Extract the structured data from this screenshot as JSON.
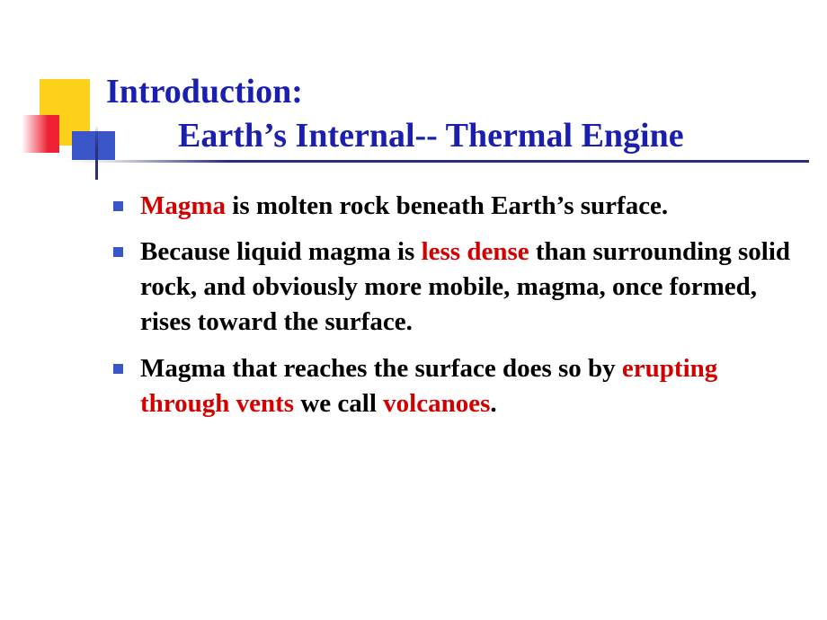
{
  "colors": {
    "title": "#1a1faf",
    "highlight": "#d40000",
    "body_text": "#000000",
    "bullet_square": "#3a55c8",
    "deco_yellow": "#fbcf1a",
    "deco_red": "#ee2233",
    "deco_blue": "#3a55c8",
    "rule": "#2a2f78",
    "background": "#ffffff"
  },
  "typography": {
    "font_family": "Times New Roman",
    "title_fontsize_pt": 28,
    "body_fontsize_pt": 22,
    "title_weight": "bold",
    "body_weight": "bold"
  },
  "title": {
    "line1": "Introduction:",
    "line2": "Earth’s Internal-- Thermal Engine"
  },
  "bullets": [
    {
      "segments": [
        {
          "text": "Magma",
          "highlight": true
        },
        {
          "text": " is molten rock beneath Earth’s surface.",
          "highlight": false
        }
      ]
    },
    {
      "segments": [
        {
          "text": "Because liquid magma is ",
          "highlight": false
        },
        {
          "text": "less dense",
          "highlight": true
        },
        {
          "text": " than surrounding solid rock, and obviously more mobile, magma, once formed, rises toward the surface.",
          "highlight": false
        }
      ]
    },
    {
      "segments": [
        {
          "text": "Magma that reaches the surface does so by ",
          "highlight": false
        },
        {
          "text": "erupting through vents",
          "highlight": true
        },
        {
          "text": " we call ",
          "highlight": false
        },
        {
          "text": "volcanoes",
          "highlight": true
        },
        {
          "text": ".",
          "highlight": false
        }
      ]
    }
  ]
}
